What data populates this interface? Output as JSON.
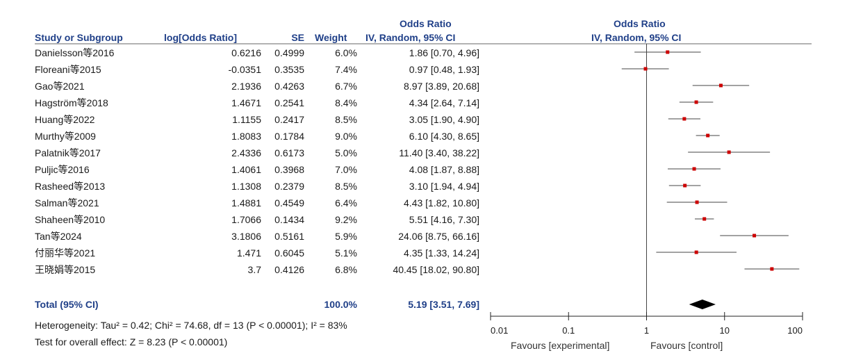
{
  "header": {
    "or_top_left": "Odds Ratio",
    "or_top_right": "Odds Ratio",
    "col_study": "Study or Subgroup",
    "col_log": "log[Odds Ratio]",
    "col_se": "SE",
    "col_weight": "Weight",
    "col_ci": "IV, Random, 95% CI",
    "col_plot": "IV, Random, 95% CI"
  },
  "studies": [
    {
      "name": "Danielsson等2016",
      "log": "0.6216",
      "se": "0.4999",
      "weight": "6.0%",
      "ci": "1.86 [0.70, 4.96]"
    },
    {
      "name": "Floreani等2015",
      "log": "-0.0351",
      "se": "0.3535",
      "weight": "7.4%",
      "ci": "0.97 [0.48, 1.93]"
    },
    {
      "name": "Gao等2021",
      "log": "2.1936",
      "se": "0.4263",
      "weight": "6.7%",
      "ci": "8.97 [3.89, 20.68]"
    },
    {
      "name": "Hagström等2018",
      "log": "1.4671",
      "se": "0.2541",
      "weight": "8.4%",
      "ci": "4.34 [2.64, 7.14]"
    },
    {
      "name": "Huang等2022",
      "log": "1.1155",
      "se": "0.2417",
      "weight": "8.5%",
      "ci": "3.05 [1.90, 4.90]"
    },
    {
      "name": "Murthy等2009",
      "log": "1.8083",
      "se": "0.1784",
      "weight": "9.0%",
      "ci": "6.10 [4.30, 8.65]"
    },
    {
      "name": "Palatnik等2017",
      "log": "2.4336",
      "se": "0.6173",
      "weight": "5.0%",
      "ci": "11.40 [3.40, 38.22]"
    },
    {
      "name": "Puljic等2016",
      "log": "1.4061",
      "se": "0.3968",
      "weight": "7.0%",
      "ci": "4.08 [1.87, 8.88]"
    },
    {
      "name": "Rasheed等2013",
      "log": "1.1308",
      "se": "0.2379",
      "weight": "8.5%",
      "ci": "3.10 [1.94, 4.94]"
    },
    {
      "name": "Salman等2021",
      "log": "1.4881",
      "se": "0.4549",
      "weight": "6.4%",
      "ci": "4.43 [1.82, 10.80]"
    },
    {
      "name": "Shaheen等2010",
      "log": "1.7066",
      "se": "0.1434",
      "weight": "9.2%",
      "ci": "5.51 [4.16, 7.30]"
    },
    {
      "name": "Tan等2024",
      "log": "3.1806",
      "se": "0.5161",
      "weight": "5.9%",
      "ci": "24.06 [8.75, 66.16]"
    },
    {
      "name": "付丽华等2021",
      "log": "1.471",
      "se": "0.6045",
      "weight": "5.1%",
      "ci": "4.35 [1.33, 14.24]"
    },
    {
      "name": "王晓娟等2015",
      "log": "3.7",
      "se": "0.4126",
      "weight": "6.8%",
      "ci": "40.45 [18.02, 90.80]"
    }
  ],
  "total": {
    "label": "Total (95% CI)",
    "weight": "100.0%",
    "ci": "5.19 [3.51, 7.69]"
  },
  "heterogeneity": "Heterogeneity: Tau² = 0.42; Chi² = 74.68, df = 13 (P < 0.00001); I² = 83%",
  "overall_effect": "Test for overall effect: Z = 8.23 (P < 0.00001)",
  "axis": {
    "favours_left": "Favours [experimental]",
    "favours_right": "Favours [control]"
  },
  "colors": {
    "header": "#1f3f88",
    "point": "#cc0000",
    "line": "#444444",
    "diamond": "#000000"
  },
  "chart_data": {
    "type": "forest",
    "scale": "log",
    "xlim": [
      0.01,
      100
    ],
    "ticks": [
      {
        "value": 0.01,
        "label": "0.01"
      },
      {
        "value": 0.1,
        "label": "0.1"
      },
      {
        "value": 1,
        "label": "1"
      },
      {
        "value": 10,
        "label": "10"
      },
      {
        "value": 100,
        "label": "100"
      }
    ],
    "points": [
      {
        "or": 1.86,
        "lo": 0.7,
        "hi": 4.96
      },
      {
        "or": 0.97,
        "lo": 0.48,
        "hi": 1.93
      },
      {
        "or": 8.97,
        "lo": 3.89,
        "hi": 20.68
      },
      {
        "or": 4.34,
        "lo": 2.64,
        "hi": 7.14
      },
      {
        "or": 3.05,
        "lo": 1.9,
        "hi": 4.9
      },
      {
        "or": 6.1,
        "lo": 4.3,
        "hi": 8.65
      },
      {
        "or": 11.4,
        "lo": 3.4,
        "hi": 38.22
      },
      {
        "or": 4.08,
        "lo": 1.87,
        "hi": 8.88
      },
      {
        "or": 3.1,
        "lo": 1.94,
        "hi": 4.94
      },
      {
        "or": 4.43,
        "lo": 1.82,
        "hi": 10.8
      },
      {
        "or": 5.51,
        "lo": 4.16,
        "hi": 7.3
      },
      {
        "or": 24.06,
        "lo": 8.75,
        "hi": 66.16
      },
      {
        "or": 4.35,
        "lo": 1.33,
        "hi": 14.24
      },
      {
        "or": 40.45,
        "lo": 18.02,
        "hi": 90.8
      }
    ],
    "pooled": {
      "or": 5.19,
      "lo": 3.51,
      "hi": 7.69
    }
  }
}
